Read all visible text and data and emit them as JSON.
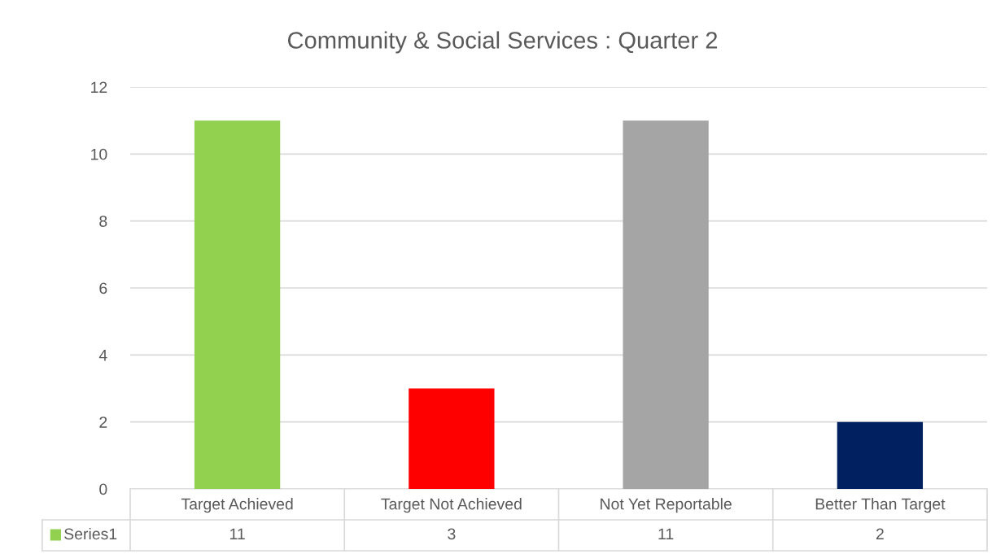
{
  "chart_data": {
    "type": "bar",
    "title": "Community & Social Services : Quarter 2",
    "categories": [
      "Target Achieved",
      "Target Not Achieved",
      "Not Yet Reportable",
      "Better Than Target"
    ],
    "series": [
      {
        "name": "Series1",
        "colors": [
          "#92d050",
          "#ff0000",
          "#a5a5a5",
          "#002060"
        ],
        "values": [
          11,
          3,
          11,
          2
        ]
      }
    ],
    "ylim": [
      0,
      12
    ],
    "yticks": [
      0,
      2,
      4,
      6,
      8,
      10,
      12
    ],
    "grid": "y",
    "data_labels": true
  }
}
